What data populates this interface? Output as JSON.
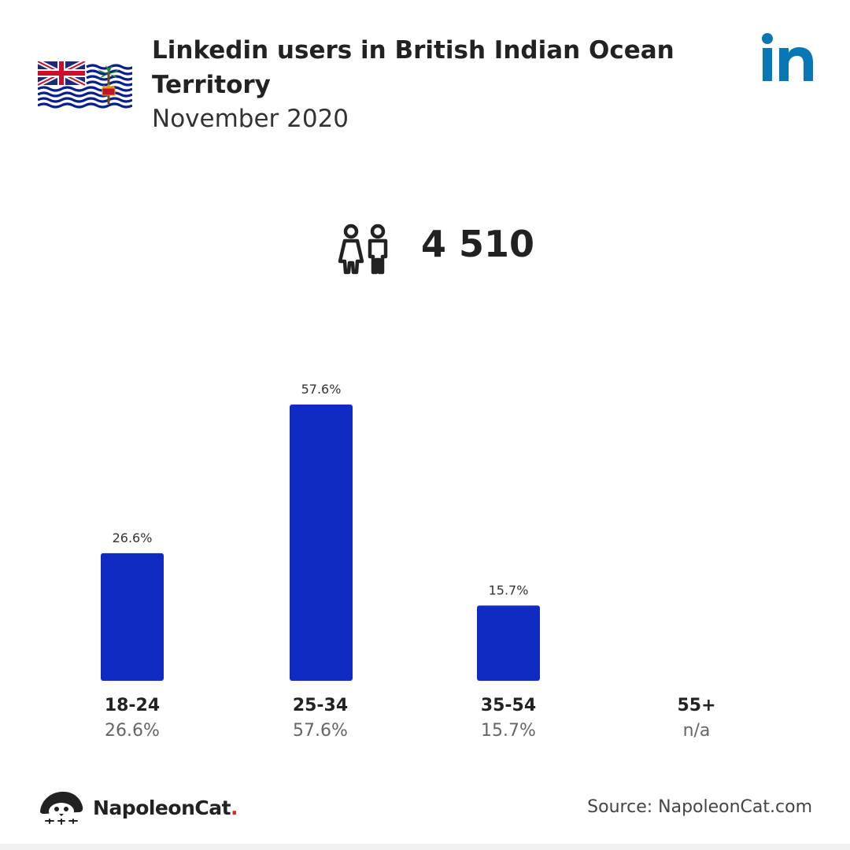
{
  "header": {
    "title": "Linkedin users in British Indian Ocean Territory",
    "subtitle": "November 2020"
  },
  "summary": {
    "total_users": "4 510",
    "icon": "people-icon"
  },
  "colors": {
    "bar": "#0f2bc2",
    "linkedin": "#0a77b5",
    "brand_dot": "#e0232d"
  },
  "chart_data": {
    "type": "bar",
    "categories": [
      "18-24",
      "25-34",
      "35-54",
      "55+"
    ],
    "values": [
      26.6,
      57.6,
      15.7,
      null
    ],
    "value_labels": [
      "26.6%",
      "57.6%",
      "15.7%",
      "n/a"
    ],
    "unit": "%",
    "ylim": [
      0,
      57.6
    ],
    "grid": false
  },
  "footer": {
    "brand_name": "NapoleonCat",
    "brand_dot": ".",
    "source": "Source: NapoleonCat.com"
  }
}
